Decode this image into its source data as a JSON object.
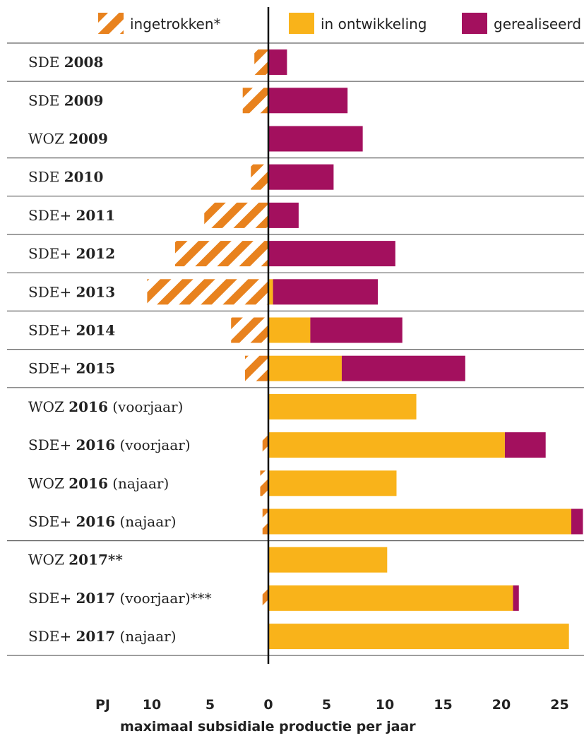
{
  "chart_data": {
    "type": "bar",
    "orientation": "horizontal",
    "stacked": true,
    "xlabel": "maximaal subsidiale productie per jaar",
    "unit": "PJ",
    "xlim": [
      -10.5,
      27
    ],
    "tick_values": [
      -10,
      -5,
      0,
      5,
      10,
      15,
      20,
      25
    ],
    "tick_labels": [
      "10",
      "5",
      "0",
      "5",
      "10",
      "15",
      "20",
      "25"
    ],
    "colors": {
      "ingetrokken": "#E8821E",
      "in_ontwikkeling": "#F9B31A",
      "gerealiseerd": "#A3105E",
      "axis": "#111111",
      "separator": "#666666"
    },
    "legend": [
      {
        "key": "ingetrokken",
        "label": "ingetrokken*",
        "style": "hatched"
      },
      {
        "key": "in_ontwikkeling",
        "label": "in ontwikkeling",
        "style": "solid"
      },
      {
        "key": "gerealiseerd",
        "label": "gerealiseerd",
        "style": "solid"
      }
    ],
    "legend_position": "top",
    "groups": [
      {
        "rows": [
          {
            "scheme": "SDE",
            "year": "2008",
            "suffix": "",
            "ingetrokken": 1.2,
            "in_ontwikkeling": 0,
            "gerealiseerd": 1.6
          }
        ]
      },
      {
        "rows": [
          {
            "scheme": "SDE",
            "year": "2009",
            "suffix": "",
            "ingetrokken": 2.2,
            "in_ontwikkeling": 0,
            "gerealiseerd": 6.8
          },
          {
            "scheme": "WOZ",
            "year": "2009",
            "suffix": "",
            "ingetrokken": 0,
            "in_ontwikkeling": 0,
            "gerealiseerd": 8.1
          }
        ]
      },
      {
        "rows": [
          {
            "scheme": "SDE",
            "year": "2010",
            "suffix": "",
            "ingetrokken": 1.5,
            "in_ontwikkeling": 0,
            "gerealiseerd": 5.6
          }
        ]
      },
      {
        "rows": [
          {
            "scheme": "SDE+",
            "year": "2011",
            "suffix": "",
            "ingetrokken": 5.5,
            "in_ontwikkeling": 0,
            "gerealiseerd": 2.6
          }
        ]
      },
      {
        "rows": [
          {
            "scheme": "SDE+",
            "year": "2012",
            "suffix": "",
            "ingetrokken": 8.0,
            "in_ontwikkeling": 0,
            "gerealiseerd": 10.9
          }
        ]
      },
      {
        "rows": [
          {
            "scheme": "SDE+",
            "year": "2013",
            "suffix": "",
            "ingetrokken": 10.4,
            "in_ontwikkeling": 0.4,
            "gerealiseerd": 9.0
          }
        ]
      },
      {
        "rows": [
          {
            "scheme": "SDE+",
            "year": "2014",
            "suffix": "",
            "ingetrokken": 3.2,
            "in_ontwikkeling": 3.6,
            "gerealiseerd": 7.9
          }
        ]
      },
      {
        "rows": [
          {
            "scheme": "SDE+",
            "year": "2015",
            "suffix": "",
            "ingetrokken": 2.0,
            "in_ontwikkeling": 6.3,
            "gerealiseerd": 10.6
          }
        ]
      },
      {
        "rows": [
          {
            "scheme": "WOZ",
            "year": "2016",
            "suffix": " (voorjaar)",
            "ingetrokken": 0,
            "in_ontwikkeling": 12.7,
            "gerealiseerd": 0
          },
          {
            "scheme": "SDE+",
            "year": "2016",
            "suffix": " (voorjaar)",
            "ingetrokken": 0.5,
            "in_ontwikkeling": 20.3,
            "gerealiseerd": 3.5
          },
          {
            "scheme": "WOZ",
            "year": "2016",
            "suffix": " (najaar)",
            "ingetrokken": 0.7,
            "in_ontwikkeling": 11.0,
            "gerealiseerd": 0
          },
          {
            "scheme": "SDE+",
            "year": "2016",
            "suffix": " (najaar)",
            "ingetrokken": 0.5,
            "in_ontwikkeling": 26.0,
            "gerealiseerd": 1.0
          }
        ]
      },
      {
        "rows": [
          {
            "scheme": "WOZ",
            "year": "2017**",
            "suffix": "",
            "ingetrokken": 0,
            "in_ontwikkeling": 10.2,
            "gerealiseerd": 0
          },
          {
            "scheme": "SDE+",
            "year": "2017",
            "suffix": "  (voorjaar)***",
            "ingetrokken": 0.5,
            "in_ontwikkeling": 21.0,
            "gerealiseerd": 0.5
          },
          {
            "scheme": "SDE+",
            "year": "2017",
            "suffix": "  (najaar)",
            "ingetrokken": 0,
            "in_ontwikkeling": 25.8,
            "gerealiseerd": 0
          }
        ]
      }
    ]
  }
}
